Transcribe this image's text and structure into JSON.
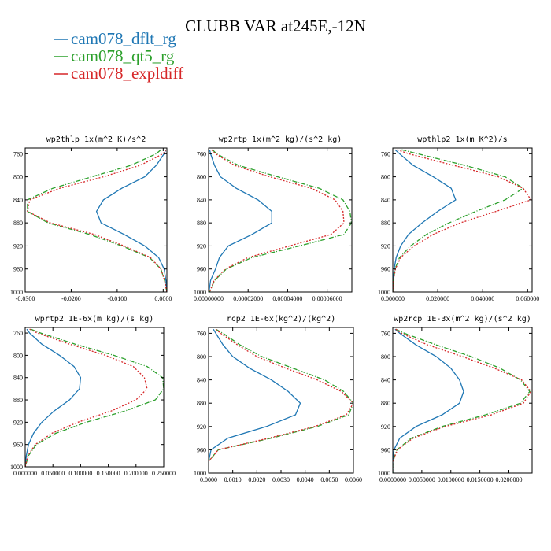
{
  "figure": {
    "title": "CLUBB VAR at245E,-12N"
  },
  "colors": {
    "dflt": "#1f77b4",
    "qt5": "#2ca02c",
    "expl": "#d62728"
  },
  "legend": [
    {
      "name": "cam078_dflt_rg",
      "color": "#1f77b4",
      "dash": "solid"
    },
    {
      "name": "cam078_qt5_rg",
      "color": "#2ca02c",
      "dash": "dashdot"
    },
    {
      "name": "cam078_expldiff",
      "color": "#d62728",
      "dash": "dotted"
    }
  ],
  "chart_data": [
    {
      "type": "line",
      "title": "wp2thlp  1x(m^2 K)/s^2",
      "xlim": [
        -0.03,
        0.0008
      ],
      "ylim": [
        1000,
        750
      ],
      "xticks": [
        -0.03,
        -0.02,
        -0.01,
        0.0
      ],
      "xtick_labels": [
        "-0.0300",
        "-0.0200",
        "-0.0100",
        "0.0000"
      ],
      "yticks": [
        760,
        800,
        840,
        880,
        920,
        960,
        1000
      ],
      "ytick_labels": [
        "760",
        "800",
        "840",
        "880",
        "920",
        "960",
        "1000"
      ],
      "series": [
        {
          "name": "cam078_dflt_rg",
          "color": "#1f77b4",
          "dash": "solid",
          "y": [
            753,
            760,
            780,
            800,
            820,
            840,
            860,
            880,
            900,
            920,
            940,
            960,
            980,
            1000
          ],
          "x": [
            0.0006,
            0.0002,
            -0.0015,
            -0.004,
            -0.009,
            -0.013,
            -0.0145,
            -0.0135,
            -0.0085,
            -0.004,
            -0.001,
            0.0002,
            0.0006,
            0.0008
          ]
        },
        {
          "name": "cam078_qt5_rg",
          "color": "#2ca02c",
          "dash": "dashdot",
          "y": [
            753,
            760,
            780,
            800,
            820,
            840,
            860,
            880,
            900,
            920,
            940,
            960,
            980,
            1000
          ],
          "x": [
            -0.0005,
            -0.0015,
            -0.007,
            -0.0155,
            -0.024,
            -0.0295,
            -0.0295,
            -0.025,
            -0.016,
            -0.009,
            -0.003,
            -0.0005,
            0.0003,
            0.0008
          ]
        },
        {
          "name": "cam078_expldiff",
          "color": "#d62728",
          "dash": "dotted",
          "y": [
            753,
            760,
            780,
            800,
            820,
            840,
            860,
            880,
            900,
            920,
            940,
            960,
            980,
            1000
          ],
          "x": [
            0.0006,
            0.0,
            -0.005,
            -0.013,
            -0.0225,
            -0.029,
            -0.0295,
            -0.0245,
            -0.015,
            -0.0085,
            -0.0028,
            -0.0005,
            0.0003,
            0.0008
          ]
        }
      ]
    },
    {
      "type": "line",
      "title": "wp2rtp  1x(m^2 kg)/(s^2 kg)",
      "xlim": [
        0.0,
        7.25e-05
      ],
      "ylim": [
        1000,
        750
      ],
      "xticks": [
        0.0,
        2e-05,
        4e-05,
        6e-05
      ],
      "xtick_labels": [
        "0.00000000",
        "0.00002000",
        "0.00004000",
        "0.00006000"
      ],
      "yticks": [
        760,
        800,
        840,
        880,
        920,
        960,
        1000
      ],
      "ytick_labels": [
        "760",
        "800",
        "840",
        "880",
        "920",
        "960",
        "1000"
      ],
      "series": [
        {
          "name": "cam078_dflt_rg",
          "color": "#1f77b4",
          "dash": "solid",
          "y": [
            753,
            760,
            780,
            800,
            820,
            840,
            860,
            880,
            900,
            920,
            940,
            960,
            980,
            1000
          ],
          "x": [
            5e-07,
            1e-06,
            3e-06,
            6e-06,
            1.4e-05,
            2.5e-05,
            3.2e-05,
            3.2e-05,
            2.2e-05,
            1e-05,
            5.5e-06,
            3.5e-06,
            1e-06,
            2e-07
          ]
        },
        {
          "name": "cam078_qt5_rg",
          "color": "#2ca02c",
          "dash": "dashdot",
          "y": [
            753,
            760,
            780,
            800,
            820,
            840,
            860,
            880,
            900,
            920,
            940,
            960,
            980,
            1000
          ],
          "x": [
            2e-06,
            4e-06,
            1.5e-05,
            3.5e-05,
            5.6e-05,
            6.8e-05,
            7.15e-05,
            7.23e-05,
            6.85e-05,
            4.6e-05,
            2.2e-05,
            9e-06,
            3e-06,
            5e-07
          ]
        },
        {
          "name": "cam078_expldiff",
          "color": "#d62728",
          "dash": "dotted",
          "y": [
            753,
            760,
            780,
            800,
            820,
            840,
            860,
            880,
            900,
            920,
            940,
            960,
            980,
            1000
          ],
          "x": [
            1.5e-06,
            3.5e-06,
            1.3e-05,
            3.1e-05,
            5.2e-05,
            6.4e-05,
            6.8e-05,
            6.85e-05,
            6.2e-05,
            4.1e-05,
            2e-05,
            8.5e-06,
            2.8e-06,
            5e-07
          ]
        }
      ]
    },
    {
      "type": "line",
      "title": "wpthlp2  1x(m K^2)/s",
      "xlim": [
        0.0,
        0.062
      ],
      "ylim": [
        1000,
        750
      ],
      "xticks": [
        0.0,
        0.02,
        0.04,
        0.06
      ],
      "xtick_labels": [
        "0.000000",
        "0.020000",
        "0.040000",
        "0.060000"
      ],
      "yticks": [
        760,
        800,
        840,
        880,
        920,
        960,
        1000
      ],
      "ytick_labels": [
        "760",
        "800",
        "840",
        "880",
        "920",
        "960",
        "1000"
      ],
      "series": [
        {
          "name": "cam078_dflt_rg",
          "color": "#1f77b4",
          "dash": "solid",
          "y": [
            753,
            760,
            780,
            800,
            820,
            840,
            860,
            880,
            900,
            920,
            940,
            960,
            980,
            1000
          ],
          "x": [
            0.001,
            0.003,
            0.009,
            0.018,
            0.026,
            0.028,
            0.02,
            0.013,
            0.007,
            0.0035,
            0.0015,
            0.0006,
            0.0002,
            0.0
          ]
        },
        {
          "name": "cam078_qt5_rg",
          "color": "#2ca02c",
          "dash": "dashdot",
          "y": [
            753,
            760,
            780,
            800,
            820,
            840,
            860,
            880,
            900,
            920,
            940,
            960,
            980,
            1000
          ],
          "x": [
            0.004,
            0.011,
            0.032,
            0.05,
            0.058,
            0.05,
            0.037,
            0.025,
            0.015,
            0.008,
            0.003,
            0.001,
            0.0003,
            0.0
          ]
        },
        {
          "name": "cam078_expldiff",
          "color": "#d62728",
          "dash": "dotted",
          "y": [
            753,
            760,
            780,
            800,
            820,
            840,
            860,
            880,
            900,
            920,
            940,
            960,
            980,
            1000
          ],
          "x": [
            0.002,
            0.007,
            0.027,
            0.047,
            0.058,
            0.0615,
            0.046,
            0.03,
            0.018,
            0.0095,
            0.0035,
            0.0012,
            0.0003,
            0.0
          ]
        }
      ]
    },
    {
      "type": "line",
      "title": "wprtp2  1E-6x(m kg)/(s kg)",
      "xlim": [
        0.0,
        0.25
      ],
      "ylim": [
        1000,
        750
      ],
      "xticks": [
        0.0,
        0.05,
        0.1,
        0.15,
        0.2,
        0.25
      ],
      "xtick_labels": [
        "0.000000",
        "0.050000",
        "0.100000",
        "0.150000",
        "0.200000",
        "0.250000"
      ],
      "yticks": [
        760,
        800,
        840,
        880,
        920,
        960,
        1000
      ],
      "ytick_labels": [
        "760",
        "800",
        "840",
        "880",
        "920",
        "960",
        "1000"
      ],
      "series": [
        {
          "name": "cam078_dflt_rg",
          "color": "#1f77b4",
          "dash": "solid",
          "y": [
            753,
            760,
            780,
            800,
            820,
            840,
            860,
            880,
            900,
            920,
            940,
            960,
            980,
            1000
          ],
          "x": [
            0.003,
            0.008,
            0.03,
            0.062,
            0.088,
            0.1,
            0.098,
            0.08,
            0.052,
            0.03,
            0.015,
            0.006,
            0.002,
            0.0
          ]
        },
        {
          "name": "cam078_qt5_rg",
          "color": "#2ca02c",
          "dash": "dashdot",
          "y": [
            753,
            760,
            780,
            800,
            820,
            840,
            860,
            880,
            900,
            920,
            940,
            960,
            980,
            1000
          ],
          "x": [
            0.01,
            0.028,
            0.09,
            0.16,
            0.22,
            0.248,
            0.25,
            0.235,
            0.18,
            0.11,
            0.055,
            0.02,
            0.006,
            0.0
          ]
        },
        {
          "name": "cam078_expldiff",
          "color": "#d62728",
          "dash": "dotted",
          "y": [
            753,
            760,
            780,
            800,
            820,
            840,
            860,
            880,
            900,
            920,
            940,
            960,
            980,
            1000
          ],
          "x": [
            0.008,
            0.022,
            0.08,
            0.145,
            0.195,
            0.215,
            0.22,
            0.2,
            0.155,
            0.095,
            0.048,
            0.018,
            0.005,
            0.0
          ]
        }
      ]
    },
    {
      "type": "line",
      "title": "rcp2  1E-6x(kg^2)/(kg^2)",
      "xlim": [
        0.0,
        0.006
      ],
      "ylim": [
        1000,
        750
      ],
      "xticks": [
        0.0,
        0.001,
        0.002,
        0.003,
        0.004,
        0.005,
        0.006
      ],
      "xtick_labels": [
        "0.0000",
        "0.0010",
        "0.0020",
        "0.0030",
        "0.0040",
        "0.0050",
        "0.0060"
      ],
      "yticks": [
        760,
        800,
        840,
        880,
        920,
        960,
        1000
      ],
      "ytick_labels": [
        "760",
        "800",
        "840",
        "880",
        "920",
        "960",
        "1000"
      ],
      "series": [
        {
          "name": "cam078_dflt_rg",
          "color": "#1f77b4",
          "dash": "solid",
          "y": [
            753,
            760,
            780,
            800,
            820,
            840,
            860,
            880,
            900,
            920,
            940,
            960,
            980,
            1000
          ],
          "x": [
            0.0002,
            0.0003,
            0.0006,
            0.001,
            0.0017,
            0.0026,
            0.0033,
            0.0038,
            0.0036,
            0.0024,
            0.0008,
            0.0001,
            0.0,
            0.0
          ]
        },
        {
          "name": "cam078_qt5_rg",
          "color": "#2ca02c",
          "dash": "dashdot",
          "y": [
            753,
            760,
            780,
            800,
            820,
            840,
            860,
            880,
            900,
            920,
            940,
            960,
            980,
            1000
          ],
          "x": [
            0.0003,
            0.0006,
            0.0013,
            0.0022,
            0.0035,
            0.0048,
            0.0056,
            0.006,
            0.0058,
            0.0045,
            0.0026,
            0.0004,
            0.0,
            0.0
          ]
        },
        {
          "name": "cam078_expldiff",
          "color": "#d62728",
          "dash": "dotted",
          "y": [
            753,
            760,
            780,
            800,
            820,
            840,
            860,
            880,
            900,
            920,
            940,
            960,
            980,
            1000
          ],
          "x": [
            0.0003,
            0.0005,
            0.0012,
            0.002,
            0.0032,
            0.0045,
            0.0055,
            0.006,
            0.0057,
            0.0044,
            0.0025,
            0.0004,
            0.0,
            0.0
          ]
        }
      ]
    },
    {
      "type": "line",
      "title": "wp2rcp  1E-3x(m^2 kg)/(s^2 kg)",
      "xlim": [
        0.0,
        0.024
      ],
      "ylim": [
        1000,
        750
      ],
      "xticks": [
        0.0,
        0.005,
        0.01,
        0.015,
        0.02
      ],
      "xtick_labels": [
        "0.0000000",
        "0.0050000",
        "0.0100000",
        "0.0150000",
        "0.0200000"
      ],
      "yticks": [
        760,
        800,
        840,
        880,
        920,
        960,
        1000
      ],
      "ytick_labels": [
        "760",
        "800",
        "840",
        "880",
        "920",
        "960",
        "1000"
      ],
      "series": [
        {
          "name": "cam078_dflt_rg",
          "color": "#1f77b4",
          "dash": "solid",
          "y": [
            753,
            760,
            780,
            800,
            820,
            840,
            860,
            880,
            900,
            920,
            940,
            960,
            980,
            1000
          ],
          "x": [
            0.0004,
            0.0012,
            0.004,
            0.0075,
            0.01,
            0.0115,
            0.0122,
            0.0115,
            0.0085,
            0.004,
            0.0012,
            0.0002,
            0.0,
            0.0
          ]
        },
        {
          "name": "cam078_qt5_rg",
          "color": "#2ca02c",
          "dash": "dashdot",
          "y": [
            753,
            760,
            780,
            800,
            820,
            840,
            860,
            880,
            900,
            920,
            940,
            960,
            980,
            1000
          ],
          "x": [
            0.0005,
            0.002,
            0.0075,
            0.0135,
            0.0185,
            0.022,
            0.0236,
            0.022,
            0.016,
            0.0085,
            0.0032,
            0.0007,
            0.0,
            0.0
          ]
        },
        {
          "name": "cam078_expldiff",
          "color": "#d62728",
          "dash": "dotted",
          "y": [
            753,
            760,
            780,
            800,
            820,
            840,
            860,
            880,
            900,
            920,
            940,
            960,
            980,
            1000
          ],
          "x": [
            0.0005,
            0.0015,
            0.006,
            0.012,
            0.0175,
            0.0222,
            0.0238,
            0.0225,
            0.017,
            0.009,
            0.0035,
            0.0008,
            0.0,
            0.0
          ]
        }
      ]
    }
  ]
}
